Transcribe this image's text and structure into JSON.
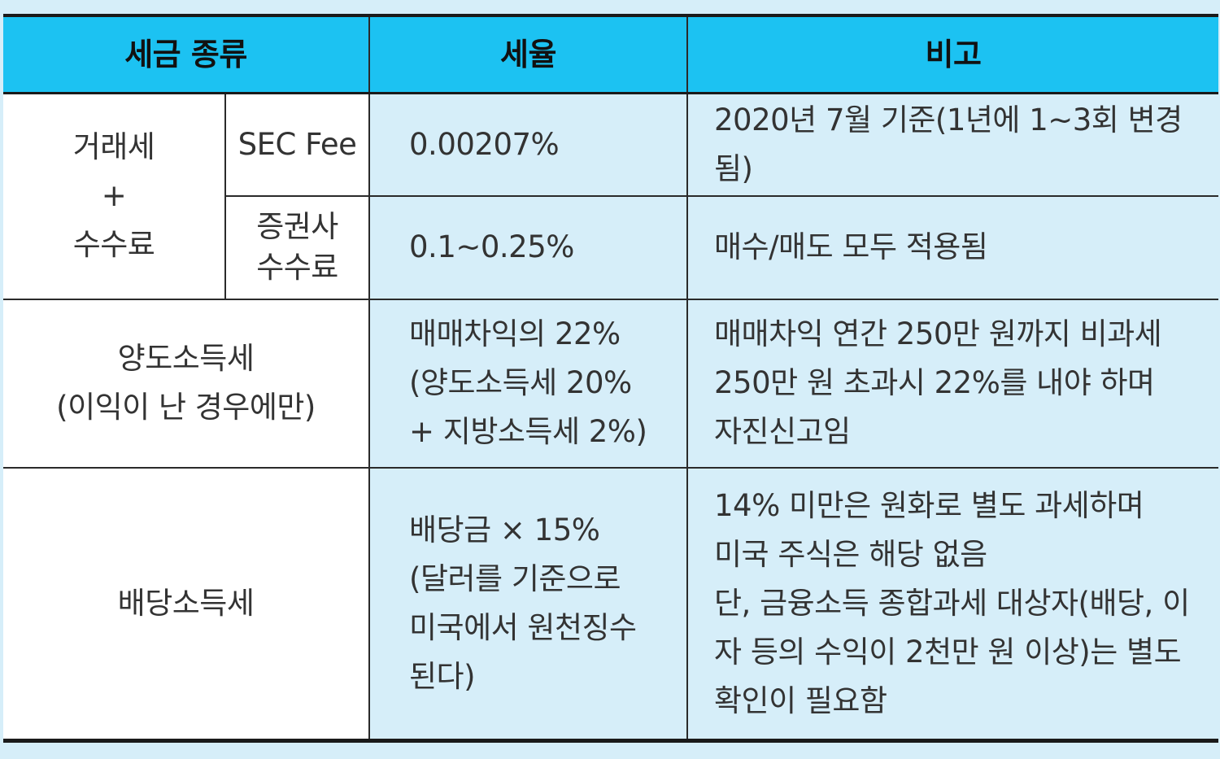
{
  "headers": {
    "tax_type": "세금 종류",
    "rate": "세율",
    "note": "비고"
  },
  "rows": {
    "transaction": {
      "group_lines": [
        "거래세",
        "+",
        "수수료"
      ],
      "sec_fee": {
        "name": "SEC Fee",
        "rate": "0.00207%",
        "note": "2020년 7월 기준(1년에 1~3회 변경됨)"
      },
      "broker_fee": {
        "name_lines": [
          "증권사",
          "수수료"
        ],
        "rate": "0.1~0.25%",
        "note": "매수/매도 모두 적용됨"
      }
    },
    "capital_gains": {
      "name_lines": [
        "양도소득세",
        "(이익이 난 경우에만)"
      ],
      "rate_lines": [
        "매매차익의 22%",
        "(양도소득세 20%",
        "+ 지방소득세 2%)"
      ],
      "note_lines": [
        "매매차익 연간 250만 원까지 비과세",
        "250만 원 초과시 22%를 내야 하며",
        "자진신고임"
      ]
    },
    "dividend": {
      "name": "배당소득세",
      "rate_lines": [
        "배당금 × 15%",
        "(달러를 기준으로",
        "미국에서 원천징수",
        "된다)"
      ],
      "note_lines": [
        "14% 미만은 원화로 별도 과세하며",
        "미국 주식은 해당 없음"
      ],
      "note_wrap": "단, 금융소득 종합과세 대상자(배당, 이자 등의 수익이 2천만 원 이상)는 별도 확인이 필요함"
    }
  }
}
